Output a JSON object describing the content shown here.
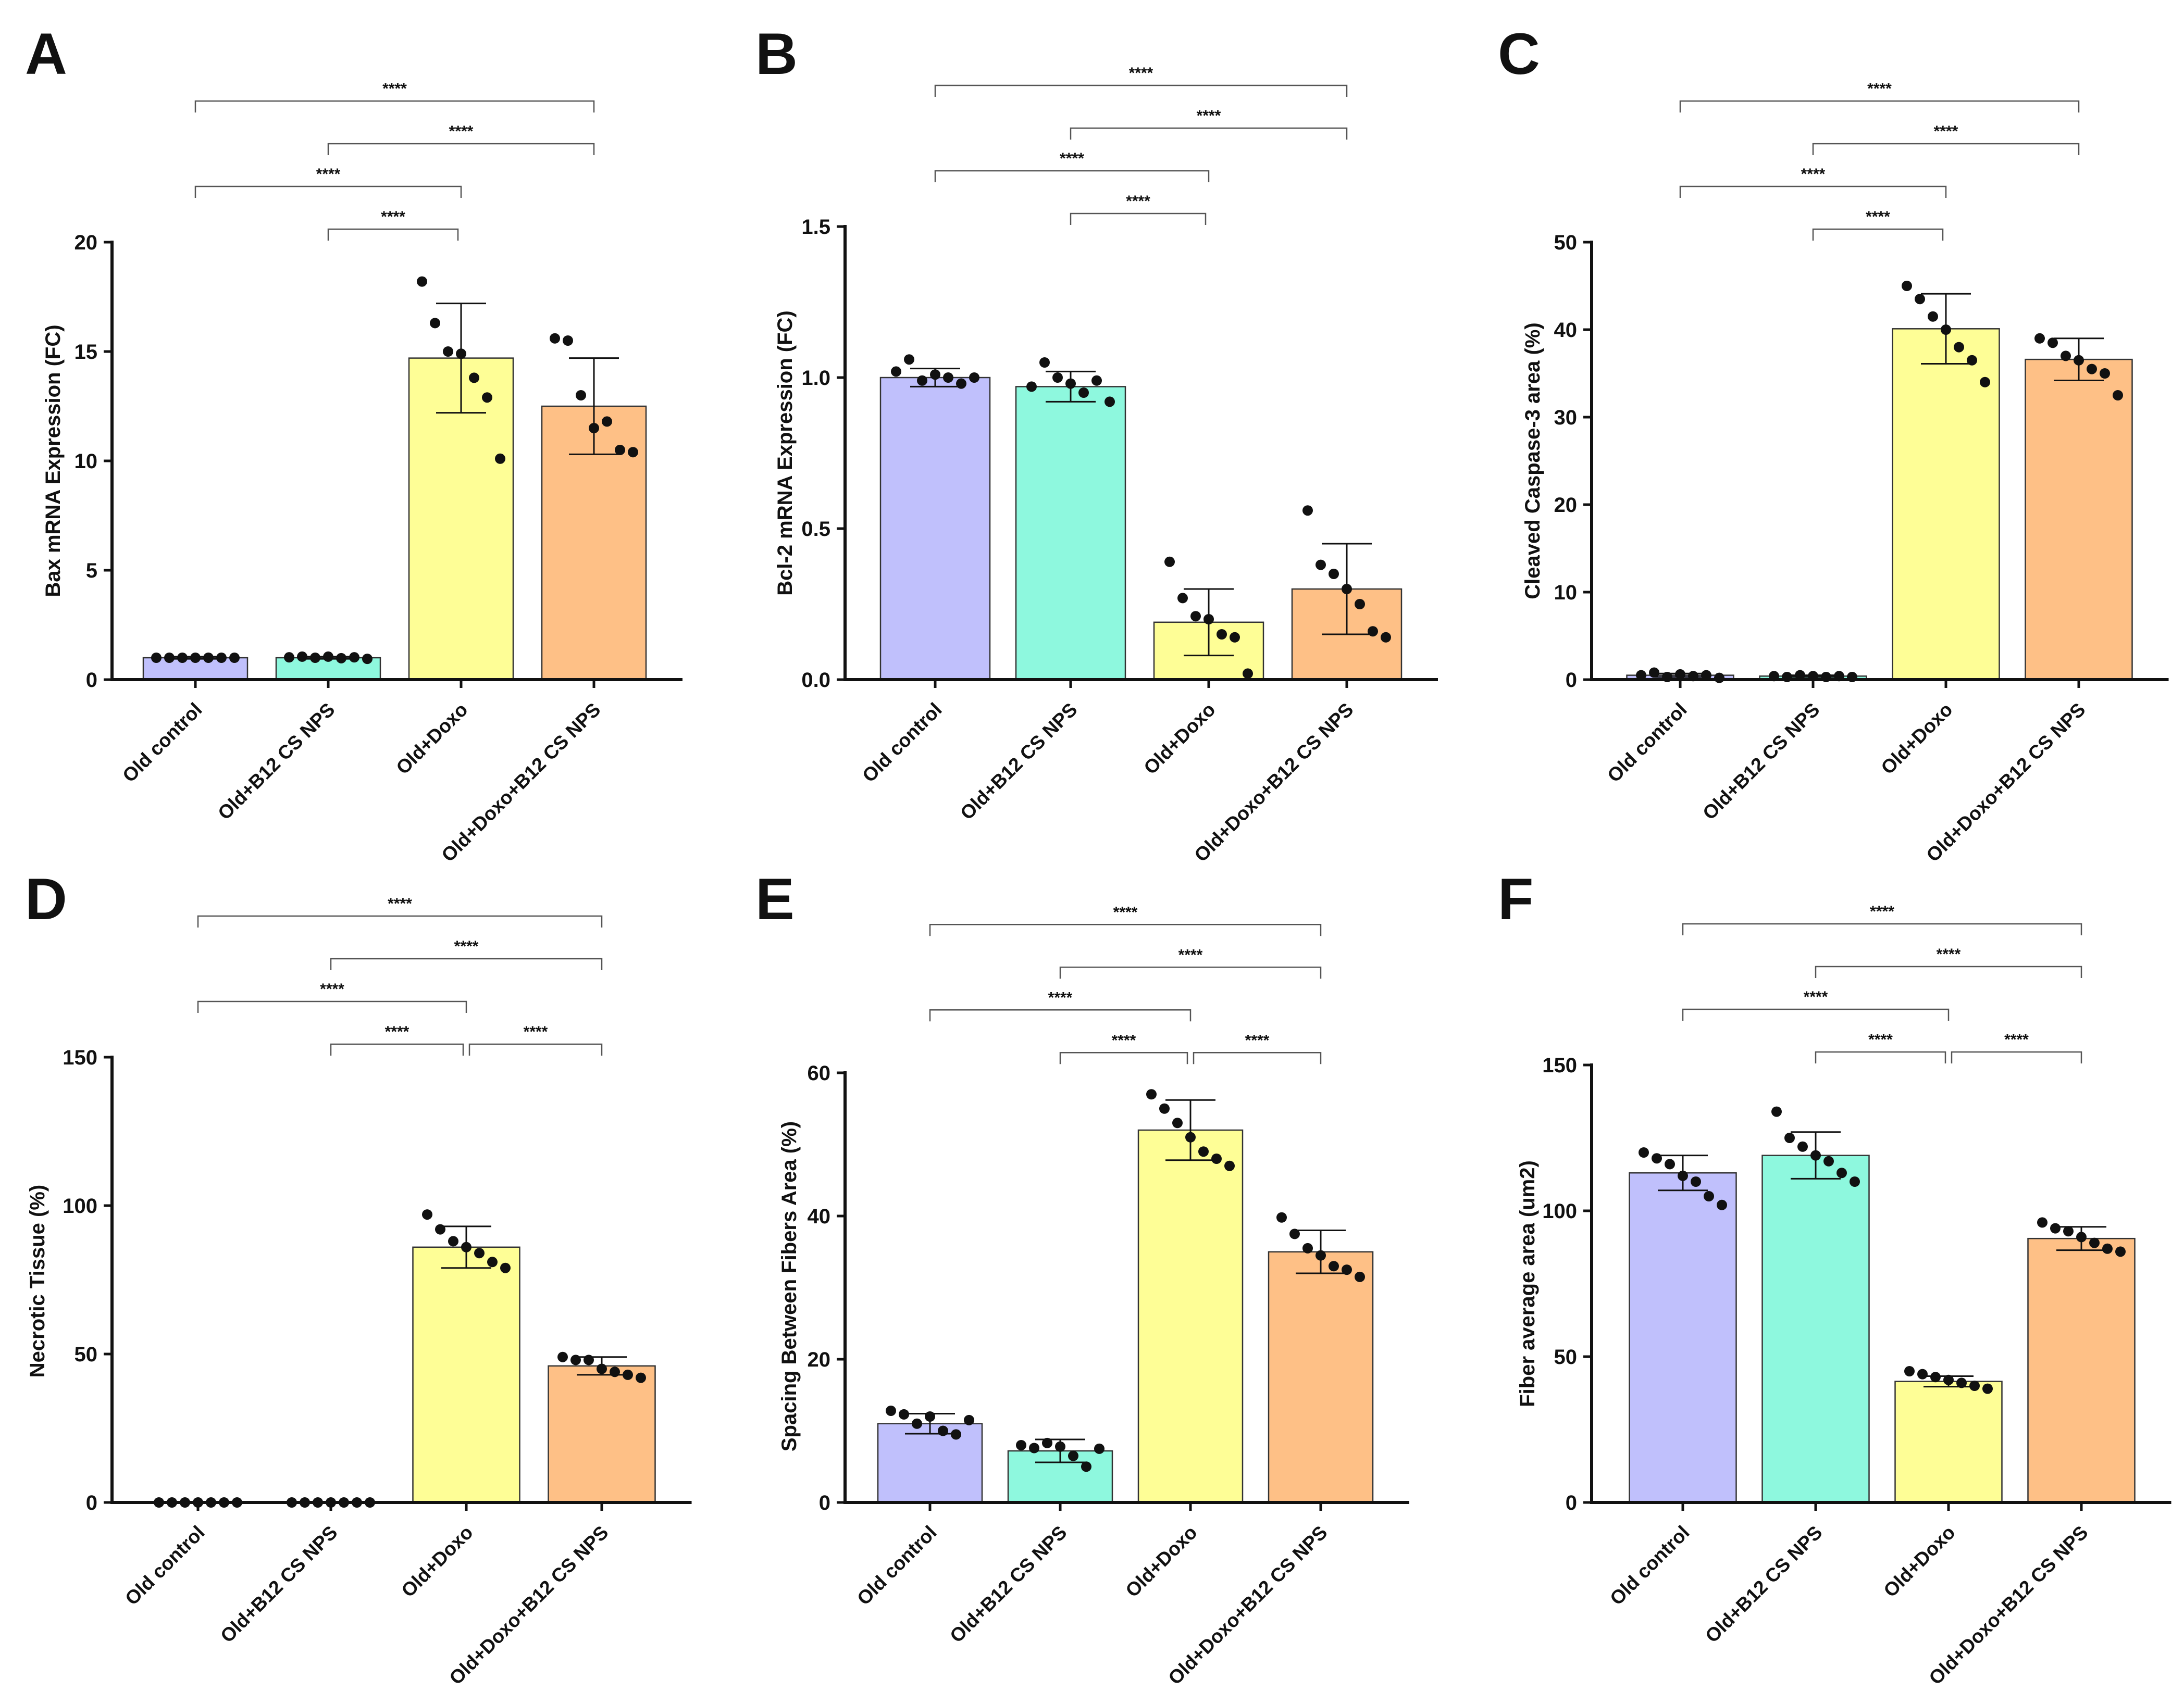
{
  "categories": [
    "Old control",
    "Old+B12 CS NPS",
    "Old+Doxo",
    "Old+Doxo+B12 CS NPS"
  ],
  "colors": [
    "#c0c0fc",
    "#8ef8de",
    "#fefe96",
    "#fec086"
  ],
  "chart_data": [
    {
      "panel": "A",
      "type": "bar",
      "ylabel": "Bax mRNA Expression (FC)",
      "ylim": [
        0,
        20
      ],
      "ticks": [
        0,
        5,
        10,
        15,
        20
      ],
      "tick_labels": [
        "0",
        "5",
        "10",
        "15",
        "20"
      ],
      "categories": [
        "Old control",
        "Old+B12 CS NPS",
        "Old+Doxo",
        "Old+Doxo+B12 CS NPS"
      ],
      "values": [
        1.0,
        1.0,
        14.7,
        12.5
      ],
      "sd": [
        0.05,
        0.05,
        2.5,
        2.2
      ],
      "points": [
        [
          1,
          1,
          1,
          1,
          1,
          1,
          1
        ],
        [
          1.02,
          1.05,
          1.0,
          1.05,
          0.98,
          1.02,
          0.95
        ],
        [
          18.2,
          16.3,
          15.0,
          14.9,
          13.8,
          12.9,
          10.1
        ],
        [
          15.6,
          15.5,
          13.0,
          11.5,
          11.8,
          10.5,
          10.4
        ]
      ],
      "significance": [
        {
          "from": 0,
          "to": 3,
          "label": "****"
        },
        {
          "from": 1,
          "to": 3,
          "label": "****"
        },
        {
          "from": 0,
          "to": 2,
          "label": "****"
        },
        {
          "from": 1,
          "to": 2,
          "label": "****"
        }
      ]
    },
    {
      "panel": "B",
      "type": "bar",
      "ylabel": "Bcl-2 mRNA Expression (FC)",
      "ylim": [
        0,
        1.5
      ],
      "ticks": [
        0,
        0.5,
        1.0,
        1.5
      ],
      "tick_labels": [
        "0.0",
        "0.5",
        "1.0",
        "1.5"
      ],
      "categories": [
        "Old control",
        "Old+B12 CS NPS",
        "Old+Doxo",
        "Old+Doxo+B12 CS NPS"
      ],
      "values": [
        1.0,
        0.97,
        0.19,
        0.3
      ],
      "sd": [
        0.03,
        0.05,
        0.11,
        0.15
      ],
      "points": [
        [
          1.02,
          1.06,
          0.99,
          1.01,
          1.0,
          0.98,
          1.0
        ],
        [
          0.97,
          1.05,
          1.0,
          0.98,
          0.95,
          0.99,
          0.92
        ],
        [
          0.39,
          0.27,
          0.21,
          0.2,
          0.15,
          0.14,
          0.02
        ],
        [
          0.56,
          0.38,
          0.35,
          0.3,
          0.25,
          0.16,
          0.14
        ]
      ],
      "significance": [
        {
          "from": 0,
          "to": 3,
          "label": "****"
        },
        {
          "from": 1,
          "to": 3,
          "label": "****"
        },
        {
          "from": 0,
          "to": 2,
          "label": "****"
        },
        {
          "from": 1,
          "to": 2,
          "label": "****"
        }
      ]
    },
    {
      "panel": "C",
      "type": "bar",
      "ylabel": "Cleaved Caspase-3  area (%)",
      "ylim": [
        0,
        50
      ],
      "ticks": [
        0,
        10,
        20,
        30,
        40,
        50
      ],
      "tick_labels": [
        "0",
        "10",
        "20",
        "30",
        "40",
        "50"
      ],
      "categories": [
        "Old control",
        "Old+B12 CS NPS",
        "Old+Doxo",
        "Old+Doxo+B12 CS NPS"
      ],
      "values": [
        0.5,
        0.4,
        40.1,
        36.6
      ],
      "sd": [
        0.2,
        0.1,
        4.0,
        2.4
      ],
      "points": [
        [
          0.5,
          0.8,
          0.3,
          0.6,
          0.4,
          0.5,
          0.2
        ],
        [
          0.4,
          0.3,
          0.5,
          0.4,
          0.3,
          0.4,
          0.3
        ],
        [
          45.0,
          43.5,
          41.5,
          40.0,
          38.0,
          36.5,
          34.0
        ],
        [
          39.0,
          38.5,
          37.0,
          36.5,
          35.5,
          35.0,
          32.5
        ]
      ],
      "significance": [
        {
          "from": 0,
          "to": 3,
          "label": "****"
        },
        {
          "from": 1,
          "to": 3,
          "label": "****"
        },
        {
          "from": 0,
          "to": 2,
          "label": "****"
        },
        {
          "from": 1,
          "to": 2,
          "label": "****"
        }
      ]
    },
    {
      "panel": "D",
      "type": "bar",
      "ylabel": "Necrotic Tissue (%)",
      "ylim": [
        0,
        150
      ],
      "ticks": [
        0,
        50,
        100,
        150
      ],
      "tick_labels": [
        "0",
        "50",
        "100",
        "150"
      ],
      "categories": [
        "Old control",
        "Old+B12 CS NPS",
        "Old+Doxo",
        "Old+Doxo+B12 CS NPS"
      ],
      "values": [
        0,
        0,
        86,
        46
      ],
      "sd": [
        0,
        0,
        7,
        3
      ],
      "points": [
        [
          0,
          0,
          0,
          0,
          0,
          0,
          0
        ],
        [
          0,
          0,
          0,
          0,
          0,
          0,
          0
        ],
        [
          97,
          92,
          88,
          86,
          84,
          81,
          79
        ],
        [
          49,
          48,
          48,
          45,
          44,
          43,
          42
        ]
      ],
      "significance": [
        {
          "from": 0,
          "to": 3,
          "label": "****"
        },
        {
          "from": 1,
          "to": 3,
          "label": "****"
        },
        {
          "from": 0,
          "to": 2,
          "label": "****"
        },
        {
          "from": 1,
          "to": 2,
          "label": "****"
        },
        {
          "from": 2,
          "to": 3,
          "label": "****"
        }
      ]
    },
    {
      "panel": "E",
      "type": "bar",
      "ylabel": "Spacing Between Fibers Area (%)",
      "ylim": [
        0,
        60
      ],
      "ticks": [
        0,
        20,
        40,
        60
      ],
      "tick_labels": [
        "0",
        "20",
        "40",
        "60"
      ],
      "categories": [
        "Old control",
        "Old+B12 CS NPS",
        "Old+Doxo",
        "Old+Doxo+B12 CS NPS"
      ],
      "values": [
        11,
        7.2,
        52,
        35
      ],
      "sd": [
        1.4,
        1.6,
        4.2,
        3.0
      ],
      "points": [
        [
          12.8,
          12.3,
          11.0,
          12.0,
          10.0,
          9.5,
          11.5
        ],
        [
          8.0,
          7.6,
          8.3,
          7.8,
          6.5,
          5.0,
          7.5
        ],
        [
          57.0,
          55.0,
          53.0,
          51.0,
          49.0,
          48.0,
          47.0
        ],
        [
          39.8,
          37.5,
          35.5,
          34.5,
          33.0,
          32.5,
          31.5
        ]
      ],
      "significance": [
        {
          "from": 0,
          "to": 3,
          "label": "****"
        },
        {
          "from": 1,
          "to": 3,
          "label": "****"
        },
        {
          "from": 0,
          "to": 2,
          "label": "****"
        },
        {
          "from": 1,
          "to": 2,
          "label": "****"
        },
        {
          "from": 2,
          "to": 3,
          "label": "****"
        }
      ]
    },
    {
      "panel": "F",
      "type": "bar",
      "ylabel": "Fiber average area (um2)",
      "ylim": [
        0,
        150
      ],
      "ticks": [
        0,
        50,
        100,
        150
      ],
      "tick_labels": [
        "0",
        "50",
        "100",
        "150"
      ],
      "categories": [
        "Old control",
        "Old+B12 CS NPS",
        "Old+Doxo",
        "Old+Doxo+B12 CS NPS"
      ],
      "values": [
        113,
        119,
        41.5,
        90.5
      ],
      "sd": [
        6,
        8,
        1.8,
        4
      ],
      "points": [
        [
          120,
          118,
          116,
          112,
          110,
          105,
          102
        ],
        [
          134,
          125,
          122,
          119,
          117,
          113,
          110
        ],
        [
          45,
          44,
          43,
          42,
          41,
          40,
          39
        ],
        [
          96,
          94,
          93,
          91,
          89,
          87,
          86
        ]
      ],
      "significance": [
        {
          "from": 0,
          "to": 3,
          "label": "****"
        },
        {
          "from": 1,
          "to": 3,
          "label": "****"
        },
        {
          "from": 0,
          "to": 2,
          "label": "****"
        },
        {
          "from": 1,
          "to": 2,
          "label": "****"
        },
        {
          "from": 2,
          "to": 3,
          "label": "****"
        }
      ]
    }
  ]
}
